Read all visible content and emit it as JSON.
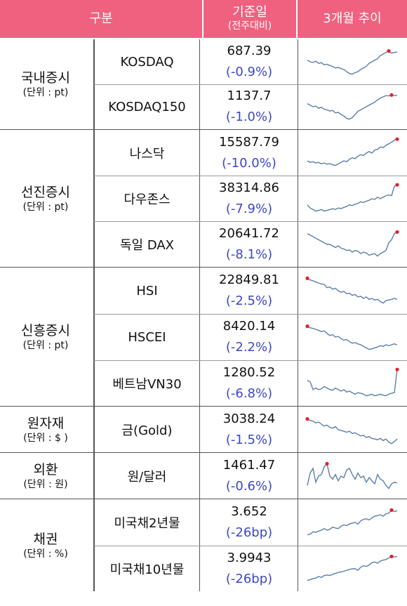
{
  "header": {
    "col1": "구분",
    "col3_main": "기준일",
    "col3_sub": "(전주대비)",
    "col4": "3개월 추이"
  },
  "groups": [
    {
      "name": "국내증시",
      "unit": "(단위 : pt)",
      "rows": [
        {
          "item": "KOSDAQ",
          "value": "687.39",
          "change": "(-0.9%)"
        },
        {
          "item": "KOSDAQ150",
          "value": "1137.7",
          "change": "(-1.0%)"
        }
      ]
    },
    {
      "name": "선진증시",
      "unit": "(단위 : pt)",
      "rows": [
        {
          "item": "나스닥",
          "value": "15587.79",
          "change": "(-10.0%)"
        },
        {
          "item": "다우존스",
          "value": "38314.86",
          "change": "(-7.9%)"
        },
        {
          "item": "독일 DAX",
          "value": "20641.72",
          "change": "(-8.1%)"
        }
      ]
    },
    {
      "name": "신흥증시",
      "unit": "(단위 : pt)",
      "rows": [
        {
          "item": "HSI",
          "value": "22849.81",
          "change": "(-2.5%)"
        },
        {
          "item": "HSCEI",
          "value": "8420.14",
          "change": "(-2.2%)"
        },
        {
          "item": "베트남VN30",
          "value": "1280.52",
          "change": "(-6.8%)"
        }
      ]
    },
    {
      "name": "원자재",
      "unit": "(단위 : $ )",
      "rows": [
        {
          "item": "금(Gold)",
          "value": "3038.24",
          "change": "(-1.5%)"
        }
      ]
    },
    {
      "name": "외환",
      "unit": "(단위 : 원)",
      "rows": [
        {
          "item": "원/달러",
          "value": "1461.47",
          "change": "(-0.6%)"
        }
      ]
    },
    {
      "name": "채권",
      "unit": "(단위 : %)",
      "rows": [
        {
          "item": "미국채2년물",
          "value": "3.652",
          "change": "(-26bp)"
        },
        {
          "item": "미국채10년물",
          "value": "3.9943",
          "change": "(-26bp)"
        }
      ]
    }
  ],
  "colors": {
    "header_bg": "#f0617f",
    "change_text": "#3b47c9",
    "spark_line": "#5a7fa8",
    "peak_marker": "#e8202a"
  },
  "sparklines": [
    [
      0.55,
      0.5,
      0.48,
      0.52,
      0.45,
      0.47,
      0.4,
      0.42,
      0.38,
      0.35,
      0.3,
      0.32,
      0.28,
      0.25,
      0.18,
      0.12,
      0.1,
      0.15,
      0.18,
      0.25,
      0.3,
      0.35,
      0.45,
      0.5,
      0.55,
      0.6,
      0.7,
      0.75,
      0.8,
      0.85,
      0.78,
      0.8,
      0.82
    ],
    [
      0.6,
      0.55,
      0.5,
      0.52,
      0.45,
      0.48,
      0.42,
      0.4,
      0.36,
      0.38,
      0.3,
      0.32,
      0.25,
      0.2,
      0.12,
      0.1,
      0.15,
      0.25,
      0.35,
      0.4,
      0.45,
      0.5,
      0.55,
      0.6,
      0.65,
      0.72,
      0.78,
      0.82,
      0.86,
      0.85,
      0.88,
      0.86,
      0.87
    ],
    [
      0.25,
      0.2,
      0.22,
      0.18,
      0.2,
      0.15,
      0.18,
      0.14,
      0.16,
      0.12,
      0.1,
      0.15,
      0.2,
      0.25,
      0.22,
      0.3,
      0.35,
      0.32,
      0.4,
      0.45,
      0.42,
      0.5,
      0.55,
      0.5,
      0.6,
      0.62,
      0.7,
      0.68,
      0.75,
      0.8,
      0.85,
      0.92,
      0.95
    ],
    [
      0.3,
      0.2,
      0.15,
      0.1,
      0.12,
      0.15,
      0.1,
      0.12,
      0.15,
      0.18,
      0.15,
      0.2,
      0.18,
      0.22,
      0.25,
      0.3,
      0.28,
      0.32,
      0.35,
      0.4,
      0.38,
      0.42,
      0.45,
      0.5,
      0.48,
      0.55,
      0.5,
      0.55,
      0.6,
      0.62,
      0.6,
      0.9,
      0.95
    ],
    [
      0.85,
      0.8,
      0.75,
      0.7,
      0.65,
      0.6,
      0.55,
      0.5,
      0.5,
      0.45,
      0.4,
      0.45,
      0.38,
      0.35,
      0.3,
      0.32,
      0.25,
      0.3,
      0.28,
      0.2,
      0.25,
      0.22,
      0.15,
      0.18,
      0.2,
      0.12,
      0.2,
      0.25,
      0.3,
      0.55,
      0.65,
      0.85,
      0.9
    ],
    [
      0.9,
      0.85,
      0.82,
      0.78,
      0.75,
      0.72,
      0.7,
      0.6,
      0.62,
      0.55,
      0.58,
      0.5,
      0.45,
      0.48,
      0.4,
      0.42,
      0.35,
      0.38,
      0.3,
      0.32,
      0.25,
      0.3,
      0.22,
      0.25,
      0.2,
      0.22,
      0.15,
      0.1,
      0.18,
      0.2,
      0.22,
      0.25,
      0.22
    ],
    [
      0.85,
      0.8,
      0.78,
      0.75,
      0.72,
      0.68,
      0.7,
      0.62,
      0.55,
      0.58,
      0.5,
      0.52,
      0.45,
      0.4,
      0.42,
      0.35,
      0.3,
      0.32,
      0.28,
      0.25,
      0.2,
      0.15,
      0.1,
      0.12,
      0.15,
      0.18,
      0.22,
      0.2,
      0.25,
      0.22,
      0.25,
      0.28,
      0.25
    ],
    [
      0.6,
      0.55,
      0.3,
      0.35,
      0.3,
      0.32,
      0.4,
      0.35,
      0.3,
      0.28,
      0.35,
      0.3,
      0.25,
      0.3,
      0.22,
      0.25,
      0.2,
      0.15,
      0.2,
      0.18,
      0.15,
      0.1,
      0.12,
      0.15,
      0.1,
      0.12,
      0.15,
      0.12,
      0.1,
      0.15,
      0.18,
      0.2,
      0.95
    ],
    [
      0.85,
      0.8,
      0.78,
      0.72,
      0.75,
      0.68,
      0.62,
      0.65,
      0.58,
      0.55,
      0.6,
      0.5,
      0.48,
      0.45,
      0.42,
      0.45,
      0.38,
      0.4,
      0.35,
      0.3,
      0.32,
      0.25,
      0.28,
      0.22,
      0.2,
      0.18,
      0.22,
      0.15,
      0.2,
      0.1,
      0.05,
      0.12,
      0.2
    ],
    [
      0.2,
      0.6,
      0.75,
      0.3,
      0.5,
      0.55,
      0.8,
      0.9,
      0.5,
      0.4,
      0.55,
      0.35,
      0.5,
      0.45,
      0.7,
      0.75,
      0.55,
      0.4,
      0.6,
      0.45,
      0.5,
      0.3,
      0.45,
      0.35,
      0.25,
      0.55,
      0.4,
      0.35,
      0.2,
      0.1,
      0.25,
      0.3,
      0.28
    ],
    [
      0.1,
      0.12,
      0.2,
      0.18,
      0.22,
      0.25,
      0.3,
      0.25,
      0.28,
      0.35,
      0.32,
      0.3,
      0.38,
      0.42,
      0.4,
      0.45,
      0.48,
      0.5,
      0.45,
      0.55,
      0.6,
      0.62,
      0.58,
      0.65,
      0.7,
      0.72,
      0.75,
      0.7,
      0.78,
      0.8,
      0.9,
      0.85,
      0.88
    ],
    [
      0.12,
      0.15,
      0.18,
      0.2,
      0.25,
      0.22,
      0.28,
      0.3,
      0.28,
      0.32,
      0.35,
      0.38,
      0.4,
      0.42,
      0.45,
      0.48,
      0.5,
      0.5,
      0.45,
      0.55,
      0.6,
      0.58,
      0.62,
      0.7,
      0.72,
      0.68,
      0.75,
      0.78,
      0.8,
      0.85,
      0.9,
      0.88,
      0.9
    ]
  ]
}
